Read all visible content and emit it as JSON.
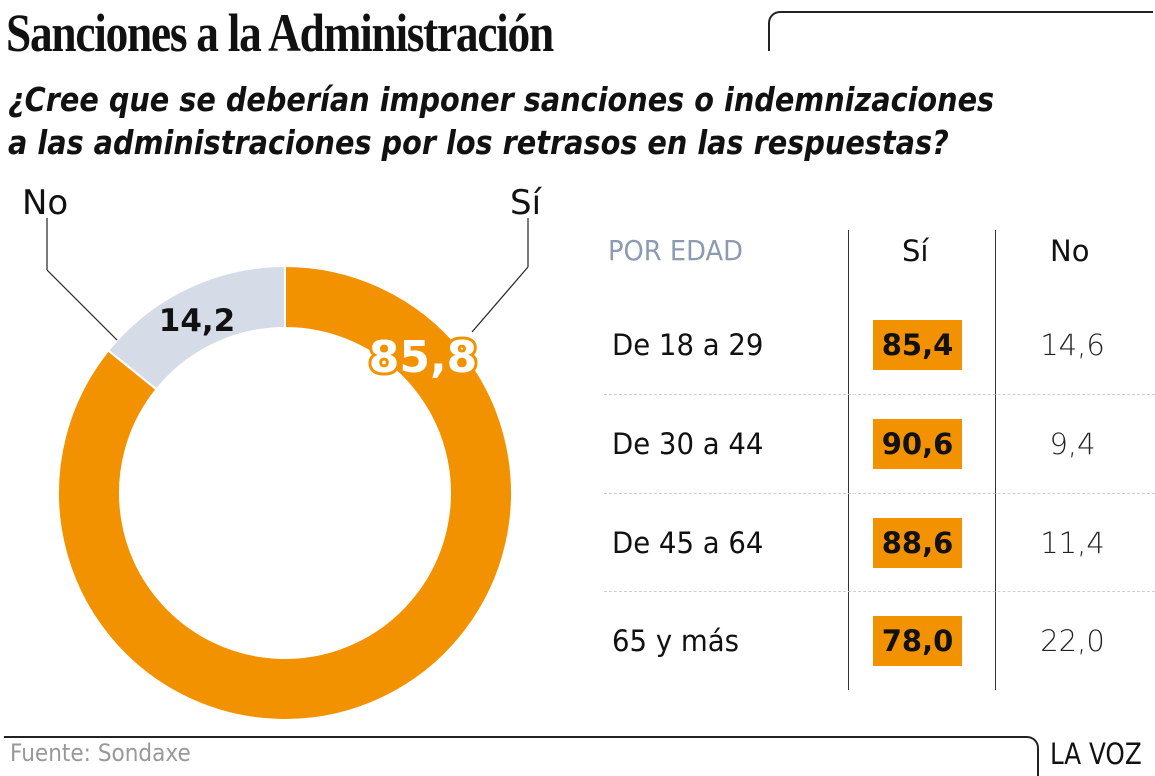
{
  "title": "Sanciones a la Administración",
  "subtitle_lines": [
    "¿Cree que se deberían imponer sanciones o indemnizaciones",
    "a las administraciones por los retrasos en las respuestas?"
  ],
  "colors": {
    "si": "#f39200",
    "no": "#d6dce7",
    "age_header": "#8a9bb2",
    "source_text": "#999999"
  },
  "chart_data": [
    {
      "type": "pie",
      "variant": "donut",
      "title": "¿Cree que se deberían imponer sanciones o indemnizaciones a las administraciones por los retrasos en las respuestas?",
      "categories": [
        "Sí",
        "No"
      ],
      "values": [
        85.8,
        14.2
      ],
      "value_labels": [
        "85,8",
        "14,2"
      ],
      "legend_labels": [
        "Sí",
        "No"
      ],
      "unit": "%"
    },
    {
      "type": "table",
      "title": "POR EDAD",
      "columns": [
        "Sí",
        "No"
      ],
      "rows": [
        {
          "label": "De 18 a 29",
          "si": 85.4,
          "no": 14.6,
          "si_label": "85,4",
          "no_label": "14,6"
        },
        {
          "label": "De 30 a 44",
          "si": 90.6,
          "no": 9.4,
          "si_label": "90,6",
          "no_label": "9,4"
        },
        {
          "label": "De 45 a 64",
          "si": 88.6,
          "no": 11.4,
          "si_label": "88,6",
          "no_label": "11,4"
        },
        {
          "label": "65 y más",
          "si": 78.0,
          "no": 22.0,
          "si_label": "78,0",
          "no_label": "22,0"
        }
      ]
    }
  ],
  "footer": {
    "source": "Fuente: Sondaxe",
    "brand": "LA VOZ"
  }
}
